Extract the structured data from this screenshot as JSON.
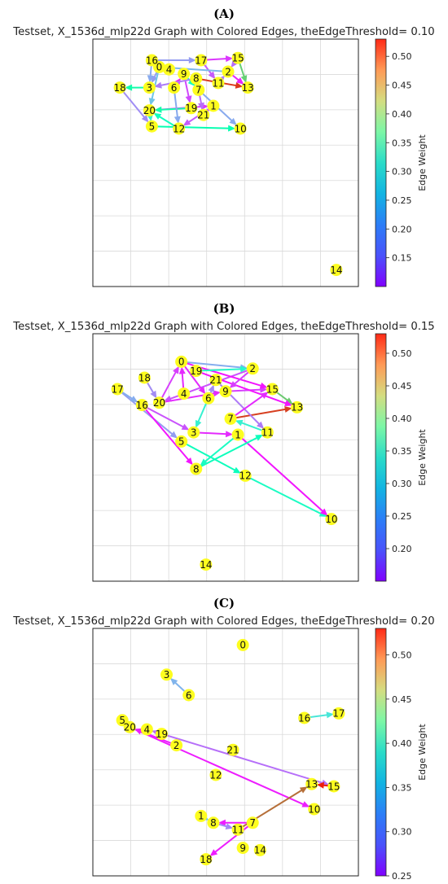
{
  "figure": {
    "colorbar_label": "Edge Weight",
    "node_color": "#fdfd1f",
    "colormap": "rainbow"
  },
  "chart_data": [
    {
      "panel": "(A)",
      "type": "network",
      "title": "Testset, X_1536d_mlp22d Graph with Colored Edges, theEdgeThreshold= 0.10",
      "threshold": 0.1,
      "color_range": [
        0.1,
        0.53
      ],
      "colorbar_ticks": [
        "0.50",
        "0.45",
        "0.40",
        "0.35",
        "0.30",
        "0.25",
        "0.20",
        "0.15"
      ],
      "grid": true,
      "nodes": [
        {
          "id": "0",
          "x": 0.23,
          "y": 0.92
        },
        {
          "id": "1",
          "x": 0.45,
          "y": 0.75
        },
        {
          "id": "2",
          "x": 0.51,
          "y": 0.9
        },
        {
          "id": "3",
          "x": 0.19,
          "y": 0.83
        },
        {
          "id": "4",
          "x": 0.27,
          "y": 0.91
        },
        {
          "id": "5",
          "x": 0.2,
          "y": 0.66
        },
        {
          "id": "6",
          "x": 0.29,
          "y": 0.83
        },
        {
          "id": "7",
          "x": 0.39,
          "y": 0.82
        },
        {
          "id": "8",
          "x": 0.38,
          "y": 0.87
        },
        {
          "id": "9",
          "x": 0.33,
          "y": 0.89
        },
        {
          "id": "10",
          "x": 0.56,
          "y": 0.65
        },
        {
          "id": "11",
          "x": 0.47,
          "y": 0.85
        },
        {
          "id": "12",
          "x": 0.31,
          "y": 0.65
        },
        {
          "id": "13",
          "x": 0.59,
          "y": 0.83
        },
        {
          "id": "14",
          "x": 0.95,
          "y": 0.03
        },
        {
          "id": "15",
          "x": 0.55,
          "y": 0.96
        },
        {
          "id": "16",
          "x": 0.2,
          "y": 0.95
        },
        {
          "id": "17",
          "x": 0.4,
          "y": 0.95
        },
        {
          "id": "18",
          "x": 0.07,
          "y": 0.83
        },
        {
          "id": "19",
          "x": 0.36,
          "y": 0.74
        },
        {
          "id": "20",
          "x": 0.19,
          "y": 0.73
        },
        {
          "id": "21",
          "x": 0.41,
          "y": 0.71
        }
      ],
      "edges": [
        {
          "from": "16",
          "to": "17",
          "weight": 0.19
        },
        {
          "from": "17",
          "to": "15",
          "weight": 0.13
        },
        {
          "from": "15",
          "to": "13",
          "weight": 0.4
        },
        {
          "from": "8",
          "to": "13",
          "weight": 0.5
        },
        {
          "from": "2",
          "to": "13",
          "weight": 0.12
        },
        {
          "from": "11",
          "to": "2",
          "weight": 0.17
        },
        {
          "from": "3",
          "to": "18",
          "weight": 0.33
        },
        {
          "from": "18",
          "to": "5",
          "weight": 0.18
        },
        {
          "from": "5",
          "to": "10",
          "weight": 0.32
        },
        {
          "from": "12",
          "to": "20",
          "weight": 0.3
        },
        {
          "from": "20",
          "to": "1",
          "weight": 0.13
        },
        {
          "from": "19",
          "to": "20",
          "weight": 0.33
        },
        {
          "from": "21",
          "to": "1",
          "weight": 0.14
        },
        {
          "from": "0",
          "to": "3",
          "weight": 0.19
        },
        {
          "from": "6",
          "to": "9",
          "weight": 0.12
        },
        {
          "from": "4",
          "to": "16",
          "weight": 0.18
        },
        {
          "from": "9",
          "to": "7",
          "weight": 0.3
        },
        {
          "from": "7",
          "to": "21",
          "weight": 0.16
        },
        {
          "from": "17",
          "to": "11",
          "weight": 0.15
        },
        {
          "from": "0",
          "to": "20",
          "weight": 0.22
        },
        {
          "from": "6",
          "to": "12",
          "weight": 0.2
        },
        {
          "from": "9",
          "to": "19",
          "weight": 0.14
        },
        {
          "from": "8",
          "to": "3",
          "weight": 0.17
        },
        {
          "from": "2",
          "to": "0",
          "weight": 0.21
        },
        {
          "from": "16",
          "to": "3",
          "weight": 0.2
        },
        {
          "from": "20",
          "to": "5",
          "weight": 0.27
        },
        {
          "from": "1",
          "to": "12",
          "weight": 0.15
        },
        {
          "from": "7",
          "to": "10",
          "weight": 0.2
        },
        {
          "from": "15",
          "to": "2",
          "weight": 0.16
        }
      ]
    },
    {
      "panel": "(B)",
      "type": "network",
      "title": "Testset, X_1536d_mlp22d Graph with Colored Edges, theEdgeThreshold= 0.15",
      "threshold": 0.15,
      "color_range": [
        0.15,
        0.53
      ],
      "colorbar_ticks": [
        "0.50",
        "0.45",
        "0.40",
        "0.35",
        "0.30",
        "0.25",
        "0.20"
      ],
      "grid": true,
      "nodes": [
        {
          "id": "0",
          "x": 0.32,
          "y": 0.92
        },
        {
          "id": "1",
          "x": 0.55,
          "y": 0.6
        },
        {
          "id": "2",
          "x": 0.61,
          "y": 0.89
        },
        {
          "id": "3",
          "x": 0.37,
          "y": 0.61
        },
        {
          "id": "4",
          "x": 0.33,
          "y": 0.78
        },
        {
          "id": "5",
          "x": 0.32,
          "y": 0.57
        },
        {
          "id": "6",
          "x": 0.43,
          "y": 0.76
        },
        {
          "id": "7",
          "x": 0.52,
          "y": 0.67
        },
        {
          "id": "8",
          "x": 0.38,
          "y": 0.45
        },
        {
          "id": "9",
          "x": 0.5,
          "y": 0.79
        },
        {
          "id": "10",
          "x": 0.93,
          "y": 0.23
        },
        {
          "id": "11",
          "x": 0.67,
          "y": 0.61
        },
        {
          "id": "12",
          "x": 0.58,
          "y": 0.42
        },
        {
          "id": "13",
          "x": 0.79,
          "y": 0.72
        },
        {
          "id": "14",
          "x": 0.42,
          "y": 0.03
        },
        {
          "id": "15",
          "x": 0.69,
          "y": 0.8
        },
        {
          "id": "16",
          "x": 0.16,
          "y": 0.73
        },
        {
          "id": "17",
          "x": 0.06,
          "y": 0.8
        },
        {
          "id": "18",
          "x": 0.17,
          "y": 0.85
        },
        {
          "id": "19",
          "x": 0.38,
          "y": 0.88
        },
        {
          "id": "20",
          "x": 0.23,
          "y": 0.74
        },
        {
          "id": "21",
          "x": 0.46,
          "y": 0.84
        }
      ],
      "edges": [
        {
          "from": "7",
          "to": "13",
          "weight": 0.5
        },
        {
          "from": "12",
          "to": "10",
          "weight": 0.32
        },
        {
          "from": "1",
          "to": "10",
          "weight": 0.16
        },
        {
          "from": "5",
          "to": "12",
          "weight": 0.33
        },
        {
          "from": "8",
          "to": "11",
          "weight": 0.33
        },
        {
          "from": "1",
          "to": "8",
          "weight": 0.32
        },
        {
          "from": "3",
          "to": "1",
          "weight": 0.17
        },
        {
          "from": "17",
          "to": "5",
          "weight": 0.23
        },
        {
          "from": "16",
          "to": "8",
          "weight": 0.16
        },
        {
          "from": "20",
          "to": "0",
          "weight": 0.18
        },
        {
          "from": "0",
          "to": "2",
          "weight": 0.24
        },
        {
          "from": "2",
          "to": "20",
          "weight": 0.19
        },
        {
          "from": "15",
          "to": "13",
          "weight": 0.42
        },
        {
          "from": "9",
          "to": "15",
          "weight": 0.18
        },
        {
          "from": "21",
          "to": "11",
          "weight": 0.21
        },
        {
          "from": "11",
          "to": "7",
          "weight": 0.3
        },
        {
          "from": "19",
          "to": "13",
          "weight": 0.16
        },
        {
          "from": "6",
          "to": "3",
          "weight": 0.3
        },
        {
          "from": "20",
          "to": "9",
          "weight": 0.17
        },
        {
          "from": "18",
          "to": "20",
          "weight": 0.22
        },
        {
          "from": "0",
          "to": "15",
          "weight": 0.16
        },
        {
          "from": "4",
          "to": "0",
          "weight": 0.17
        },
        {
          "from": "19",
          "to": "2",
          "weight": 0.31
        },
        {
          "from": "2",
          "to": "9",
          "weight": 0.18
        },
        {
          "from": "6",
          "to": "21",
          "weight": 0.22
        },
        {
          "from": "17",
          "to": "16",
          "weight": 0.24
        },
        {
          "from": "16",
          "to": "3",
          "weight": 0.19
        },
        {
          "from": "7",
          "to": "15",
          "weight": 0.17
        },
        {
          "from": "0",
          "to": "6",
          "weight": 0.17
        }
      ]
    },
    {
      "panel": "(C)",
      "type": "network",
      "title": "Testset, X_1536d_mlp22d Graph with Colored Edges, theEdgeThreshold= 0.20",
      "threshold": 0.2,
      "color_range": [
        0.25,
        0.53
      ],
      "colorbar_ticks": [
        "0.50",
        "0.45",
        "0.40",
        "0.35",
        "0.30",
        "0.25"
      ],
      "grid": true,
      "nodes": [
        {
          "id": "0",
          "x": 0.57,
          "y": 0.97
        },
        {
          "id": "1",
          "x": 0.4,
          "y": 0.22
        },
        {
          "id": "2",
          "x": 0.3,
          "y": 0.53
        },
        {
          "id": "3",
          "x": 0.26,
          "y": 0.84
        },
        {
          "id": "4",
          "x": 0.18,
          "y": 0.6
        },
        {
          "id": "5",
          "x": 0.08,
          "y": 0.64
        },
        {
          "id": "6",
          "x": 0.35,
          "y": 0.75
        },
        {
          "id": "7",
          "x": 0.61,
          "y": 0.19
        },
        {
          "id": "8",
          "x": 0.45,
          "y": 0.19
        },
        {
          "id": "9",
          "x": 0.57,
          "y": 0.08
        },
        {
          "id": "10",
          "x": 0.86,
          "y": 0.25
        },
        {
          "id": "11",
          "x": 0.55,
          "y": 0.16
        },
        {
          "id": "12",
          "x": 0.46,
          "y": 0.4
        },
        {
          "id": "13",
          "x": 0.85,
          "y": 0.36
        },
        {
          "id": "14",
          "x": 0.64,
          "y": 0.07
        },
        {
          "id": "15",
          "x": 0.94,
          "y": 0.35
        },
        {
          "id": "16",
          "x": 0.82,
          "y": 0.65
        },
        {
          "id": "17",
          "x": 0.96,
          "y": 0.67
        },
        {
          "id": "18",
          "x": 0.42,
          "y": 0.03
        },
        {
          "id": "19",
          "x": 0.24,
          "y": 0.58
        },
        {
          "id": "20",
          "x": 0.11,
          "y": 0.61
        },
        {
          "id": "21",
          "x": 0.53,
          "y": 0.51
        }
      ],
      "edges": [
        {
          "from": "6",
          "to": "3",
          "weight": 0.32
        },
        {
          "from": "16",
          "to": "17",
          "weight": 0.35
        },
        {
          "from": "5",
          "to": "20",
          "weight": 0.38
        },
        {
          "from": "20",
          "to": "10",
          "weight": 0.26
        },
        {
          "from": "4",
          "to": "15",
          "weight": 0.29
        },
        {
          "from": "2",
          "to": "20",
          "weight": 0.26
        },
        {
          "from": "19",
          "to": "4",
          "weight": 0.29
        },
        {
          "from": "15",
          "to": "13",
          "weight": 0.52
        },
        {
          "from": "11",
          "to": "13",
          "weight": 0.49
        },
        {
          "from": "7",
          "to": "18",
          "weight": 0.26
        },
        {
          "from": "7",
          "to": "8",
          "weight": 0.26
        },
        {
          "from": "8",
          "to": "11",
          "weight": 0.3
        },
        {
          "from": "1",
          "to": "8",
          "weight": 0.33
        }
      ]
    }
  ]
}
